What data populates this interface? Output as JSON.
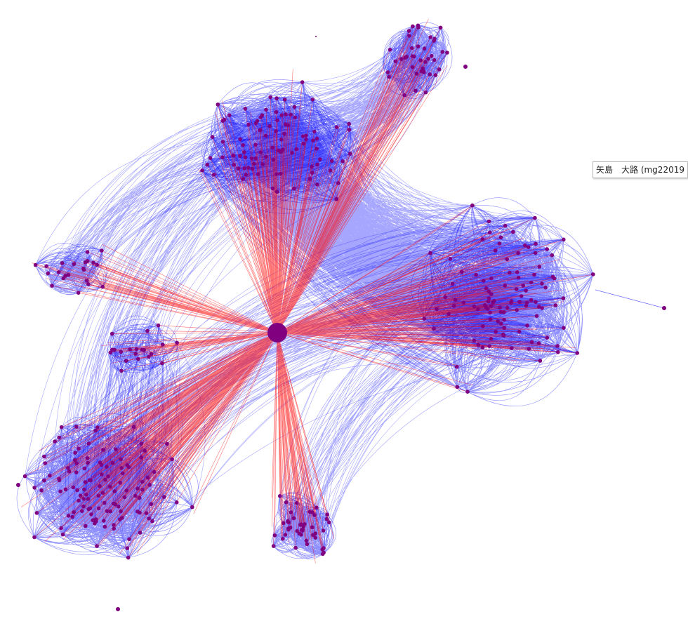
{
  "tooltip": {
    "text": "矢島　大路 (mg22019"
  },
  "colors": {
    "intra_edge": "#0000ff",
    "hub_edge": "#ff0000",
    "node": "#800080",
    "background": "#ffffff"
  },
  "clusters": [
    {
      "id": "north",
      "node_count": 95
    },
    {
      "id": "north-east",
      "node_count": 40
    },
    {
      "id": "east",
      "node_count": 110
    },
    {
      "id": "west",
      "node_count": 22
    },
    {
      "id": "center-west",
      "node_count": 20
    },
    {
      "id": "south-west",
      "node_count": 120
    },
    {
      "id": "south",
      "node_count": 45
    }
  ],
  "hub": {
    "id": "hub",
    "label": ""
  }
}
